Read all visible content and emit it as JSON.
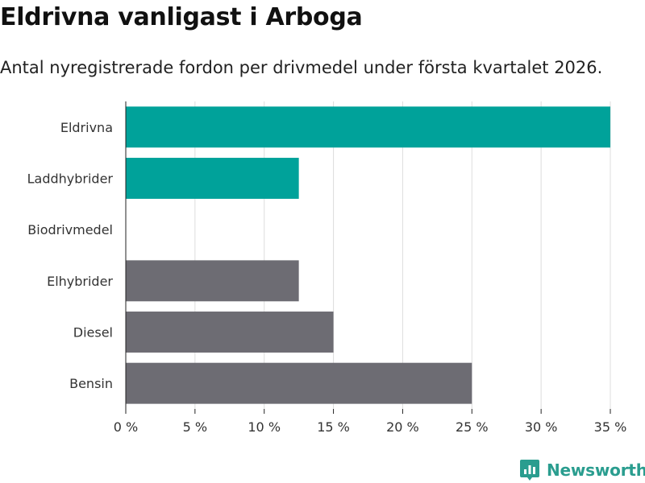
{
  "colors": {
    "highlight": "#00a29a",
    "default": "#6d6c73",
    "grid": "#dddddd",
    "brand": "#2a9d8f"
  },
  "brand": {
    "name": "Newsworthy",
    "icon": "bar-chart-pin-icon"
  },
  "chart_data": {
    "type": "bar",
    "orientation": "horizontal",
    "title": "Eldrivna vanligast i Arboga",
    "subtitle": "Antal nyregistrerade fordon per drivmedel under första kvartalet 2026.",
    "categories": [
      "Eldrivna",
      "Laddhybrider",
      "Biodrivmedel",
      "Elhybrider",
      "Diesel",
      "Bensin"
    ],
    "values": [
      35,
      12.5,
      0,
      12.5,
      15,
      25
    ],
    "highlighted": [
      true,
      true,
      false,
      false,
      false,
      false
    ],
    "xlim": [
      0,
      35
    ],
    "xticks": [
      0,
      5,
      10,
      15,
      20,
      25,
      30,
      35
    ],
    "xtick_labels": [
      "0 %",
      "5 %",
      "10 %",
      "15 %",
      "20 %",
      "25 %",
      "30 %",
      "35 %"
    ],
    "grid": true
  }
}
